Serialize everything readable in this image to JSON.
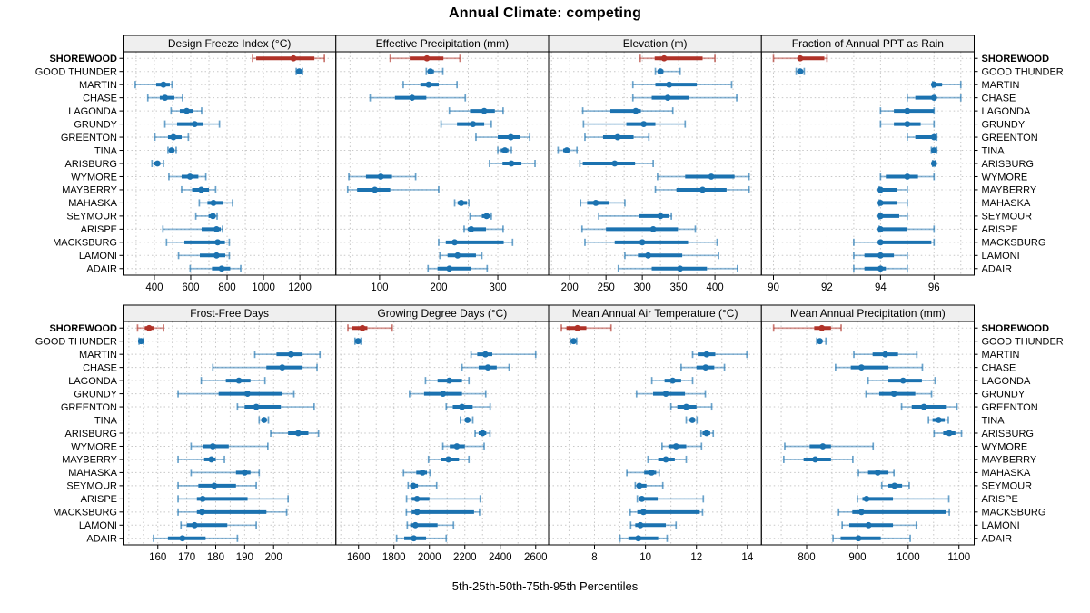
{
  "title": "Annual Climate: competing",
  "caption": "5th-25th-50th-75th-95th Percentiles",
  "colors": {
    "normal": "#1b72b0",
    "highlight": "#b03228",
    "grid": "#c8c8c8",
    "strip_bg": "#efefef",
    "panel_border": "#000000",
    "background": "#ffffff"
  },
  "highlight_location": "SHOREWOOD",
  "chart_data": {
    "type": "dotplot-intervals",
    "percentiles": [
      5,
      25,
      50,
      75,
      95
    ],
    "legend_note": "5th-25th-50th-75th-95th Percentiles",
    "rows": [
      "SHOREWOOD",
      "GOOD THUNDER",
      "MARTIN",
      "CHASE",
      "LAGONDA",
      "GRUNDY",
      "GREENTON",
      "TINA",
      "ARISBURG",
      "WYMORE",
      "MAYBERRY",
      "MAHASKA",
      "SEYMOUR",
      "ARISPE",
      "MACKSBURG",
      "LAMONI",
      "ADAIR"
    ],
    "panels": [
      {
        "title": "Design Freeze Index (°C)",
        "xlim": [
          228,
          1398
        ],
        "ticks": [
          400,
          600,
          800,
          1000,
          1200
        ],
        "grid_step": 100,
        "values": [
          [
            940,
            960,
            1165,
            1280,
            1335
          ],
          [
            1180,
            1190,
            1196,
            1203,
            1215
          ],
          [
            295,
            410,
            450,
            485,
            497
          ],
          [
            364,
            430,
            459,
            510,
            555
          ],
          [
            492,
            540,
            578,
            615,
            660
          ],
          [
            458,
            525,
            622,
            667,
            758
          ],
          [
            403,
            475,
            505,
            550,
            587
          ],
          [
            475,
            483,
            495,
            508,
            520
          ],
          [
            387,
            400,
            417,
            432,
            450
          ],
          [
            480,
            550,
            596,
            642,
            683
          ],
          [
            550,
            608,
            658,
            700,
            737
          ],
          [
            647,
            692,
            725,
            775,
            830
          ],
          [
            628,
            698,
            722,
            735,
            745
          ],
          [
            447,
            660,
            742,
            765,
            775
          ],
          [
            467,
            565,
            748,
            788,
            812
          ],
          [
            533,
            650,
            742,
            790,
            812
          ],
          [
            597,
            717,
            770,
            817,
            875
          ]
        ]
      },
      {
        "title": "Effective Precipitation (mm)",
        "xlim": [
          26,
          386
        ],
        "ticks": [
          100,
          200,
          300
        ],
        "grid_step": 50,
        "values": [
          [
            118,
            151,
            180,
            208,
            236
          ],
          [
            179,
            182,
            186,
            192,
            207
          ],
          [
            140,
            169,
            183,
            200,
            231
          ],
          [
            84,
            126,
            155,
            179,
            245
          ],
          [
            218,
            253,
            277,
            295,
            309
          ],
          [
            204,
            231,
            258,
            277,
            289
          ],
          [
            263,
            300,
            322,
            338,
            354
          ],
          [
            300,
            305,
            312,
            318,
            323
          ],
          [
            286,
            308,
            323,
            340,
            363
          ],
          [
            48,
            77,
            102,
            121,
            161
          ],
          [
            46,
            62,
            92,
            118,
            200
          ],
          [
            227,
            232,
            238,
            248,
            251
          ],
          [
            253,
            273,
            281,
            286,
            289
          ],
          [
            243,
            249,
            255,
            280,
            309
          ],
          [
            200,
            212,
            227,
            310,
            325
          ],
          [
            202,
            215,
            232,
            263,
            273
          ],
          [
            182,
            198,
            218,
            254,
            282
          ]
        ]
      },
      {
        "title": "Elevation (m)",
        "xlim": [
          171,
          464
        ],
        "ticks": [
          200,
          250,
          300,
          350,
          400
        ],
        "grid_step": 25,
        "values": [
          [
            297,
            317,
            330,
            383,
            400
          ],
          [
            318,
            321,
            325,
            329,
            352
          ],
          [
            287,
            318,
            337,
            375,
            423
          ],
          [
            287,
            313,
            335,
            364,
            430
          ],
          [
            218,
            256,
            291,
            298,
            342
          ],
          [
            219,
            278,
            302,
            318,
            359
          ],
          [
            221,
            246,
            266,
            288,
            309
          ],
          [
            184,
            191,
            196,
            201,
            210
          ],
          [
            214,
            218,
            262,
            290,
            315
          ],
          [
            321,
            359,
            395,
            427,
            447
          ],
          [
            318,
            347,
            383,
            416,
            447
          ],
          [
            215,
            224,
            236,
            254,
            276
          ],
          [
            240,
            295,
            325,
            337,
            340
          ],
          [
            217,
            250,
            315,
            349,
            373
          ],
          [
            221,
            262,
            300,
            363,
            403
          ],
          [
            276,
            294,
            308,
            355,
            405
          ],
          [
            267,
            313,
            352,
            389,
            431
          ]
        ]
      },
      {
        "title": "Fraction of Annual PPT as Rain",
        "xlim": [
          89.55,
          97.5
        ],
        "ticks": [
          90,
          92,
          94,
          96
        ],
        "grid_step": 1,
        "values": [
          [
            90,
            90.9,
            91,
            91.9,
            92
          ],
          [
            90.85,
            90.95,
            91,
            91.05,
            91.15
          ],
          [
            95.95,
            96,
            96,
            96.3,
            97
          ],
          [
            95,
            95.3,
            96,
            96,
            97
          ],
          [
            94,
            94.5,
            95,
            96,
            96
          ],
          [
            94,
            94.5,
            95,
            95.5,
            96
          ],
          [
            95,
            95.3,
            96,
            96,
            96.1
          ],
          [
            95.9,
            95.95,
            96,
            96.05,
            96.1
          ],
          [
            95.95,
            96,
            96,
            96.03,
            96.06
          ],
          [
            94,
            94.2,
            95,
            95.4,
            96
          ],
          [
            93.95,
            94,
            94,
            94.6,
            95
          ],
          [
            93.95,
            94,
            94,
            94.6,
            95
          ],
          [
            93.95,
            94,
            94,
            94.7,
            95
          ],
          [
            93.95,
            94,
            94,
            95,
            96
          ],
          [
            93,
            93.9,
            94,
            95.9,
            96
          ],
          [
            93,
            93.4,
            94,
            94.5,
            95
          ],
          [
            93,
            93.4,
            94,
            94.2,
            95
          ]
        ]
      },
      {
        "title": "Frost-Free Days",
        "xlim": [
          148,
          221.5
        ],
        "ticks": [
          160,
          170,
          180,
          190,
          200
        ],
        "grid_step": 5,
        "values": [
          [
            153,
            155.5,
            157,
            158.5,
            162
          ],
          [
            153.5,
            153.9,
            154.2,
            154.6,
            155.1
          ],
          [
            193.5,
            201,
            206,
            210,
            216
          ],
          [
            179,
            197.5,
            203,
            210,
            215
          ],
          [
            175,
            183.5,
            188,
            192,
            197
          ],
          [
            167,
            181,
            191,
            203,
            207
          ],
          [
            187.5,
            190,
            194,
            202.5,
            214
          ],
          [
            195,
            196,
            196.7,
            197.5,
            198.2
          ],
          [
            199,
            205,
            208.5,
            212,
            215.5
          ],
          [
            171.5,
            175.5,
            179,
            184.5,
            198
          ],
          [
            167,
            176,
            178.5,
            180,
            183
          ],
          [
            171.5,
            187,
            190,
            192,
            195
          ],
          [
            167,
            174,
            179.5,
            187,
            194
          ],
          [
            167,
            173.5,
            175.5,
            191,
            205
          ],
          [
            167,
            173.5,
            175.3,
            197.5,
            204.5
          ],
          [
            168,
            170,
            172.7,
            184,
            194
          ],
          [
            158.5,
            163.5,
            168.5,
            176.5,
            187.5
          ]
        ]
      },
      {
        "title": "Growing Degree Days (°C)",
        "xlim": [
          1472,
          2673
        ],
        "ticks": [
          1600,
          1800,
          2000,
          2200,
          2400,
          2600
        ],
        "grid_step": 100,
        "values": [
          [
            1540,
            1565,
            1622,
            1650,
            1790
          ],
          [
            1580,
            1590,
            1597,
            1605,
            1614
          ],
          [
            2235,
            2270,
            2316,
            2355,
            2600
          ],
          [
            2184,
            2278,
            2330,
            2380,
            2450
          ],
          [
            1978,
            2046,
            2112,
            2184,
            2223
          ],
          [
            1888,
            1970,
            2077,
            2184,
            2318
          ],
          [
            2095,
            2132,
            2184,
            2244,
            2343
          ],
          [
            2175,
            2200,
            2215,
            2230,
            2245
          ],
          [
            2258,
            2278,
            2300,
            2321,
            2342
          ],
          [
            2076,
            2115,
            2155,
            2200,
            2309
          ],
          [
            1995,
            2064,
            2107,
            2167,
            2223
          ],
          [
            1854,
            1926,
            1961,
            1986,
            2003
          ],
          [
            1880,
            1892,
            1909,
            1935,
            2041
          ],
          [
            1871,
            1900,
            1930,
            2000,
            2287
          ],
          [
            1870,
            1900,
            1931,
            2252,
            2283
          ],
          [
            1875,
            1892,
            1921,
            2046,
            2136
          ],
          [
            1815,
            1858,
            1912,
            1981,
            2095
          ]
        ]
      },
      {
        "title": "Mean Annual Air Temperature (°C)",
        "xlim": [
          6.2,
          14.55
        ],
        "ticks": [
          8,
          10,
          12,
          14
        ],
        "grid_step": 1,
        "values": [
          [
            6.7,
            6.9,
            7.33,
            7.68,
            8.65
          ],
          [
            7.05,
            7.12,
            7.18,
            7.24,
            7.3
          ],
          [
            11.85,
            12.05,
            12.4,
            12.74,
            13.98
          ],
          [
            11.4,
            12.0,
            12.36,
            12.7,
            13.1
          ],
          [
            10.25,
            10.75,
            11.07,
            11.4,
            11.85
          ],
          [
            9.65,
            10.3,
            10.8,
            11.55,
            12.35
          ],
          [
            11.0,
            11.25,
            11.6,
            12.0,
            12.6
          ],
          [
            11.6,
            11.75,
            11.84,
            11.95,
            12.02
          ],
          [
            12.18,
            12.24,
            12.4,
            12.54,
            12.66
          ],
          [
            10.65,
            10.9,
            11.2,
            11.6,
            12.2
          ],
          [
            10.1,
            10.5,
            10.8,
            11.15,
            11.6
          ],
          [
            9.27,
            9.95,
            10.24,
            10.42,
            10.54
          ],
          [
            9.6,
            9.68,
            9.76,
            10.04,
            10.68
          ],
          [
            9.68,
            9.74,
            9.86,
            10.48,
            12.27
          ],
          [
            9.4,
            9.68,
            9.92,
            12.13,
            12.24
          ],
          [
            9.42,
            9.6,
            9.8,
            10.8,
            11.2
          ],
          [
            9.0,
            9.33,
            9.72,
            10.5,
            10.85
          ]
        ]
      },
      {
        "title": "Mean Annual Precipitation (mm)",
        "xlim": [
          711,
          1130
        ],
        "ticks": [
          800,
          900,
          1000,
          1100
        ],
        "grid_step": 50,
        "values": [
          [
            735,
            815,
            830,
            848,
            868
          ],
          [
            820,
            823,
            826,
            830,
            838
          ],
          [
            893,
            930,
            955,
            980,
            1017
          ],
          [
            857,
            887,
            908,
            961,
            1028
          ],
          [
            921,
            961,
            990,
            1027,
            1053
          ],
          [
            917,
            943,
            972,
            1014,
            1046
          ],
          [
            987,
            1007,
            1031,
            1076,
            1096
          ],
          [
            1040,
            1048,
            1060,
            1072,
            1079
          ],
          [
            1051,
            1069,
            1081,
            1093,
            1105
          ],
          [
            757,
            806,
            832,
            848,
            931
          ],
          [
            755,
            794,
            817,
            848,
            891
          ],
          [
            902,
            921,
            940,
            961,
            972
          ],
          [
            948,
            961,
            973,
            988,
            1002
          ],
          [
            900,
            910,
            918,
            970,
            1080
          ],
          [
            863,
            890,
            908,
            1074,
            1081
          ],
          [
            870,
            884,
            922,
            970,
            1016
          ],
          [
            852,
            867,
            902,
            946,
            1004
          ]
        ]
      }
    ]
  }
}
